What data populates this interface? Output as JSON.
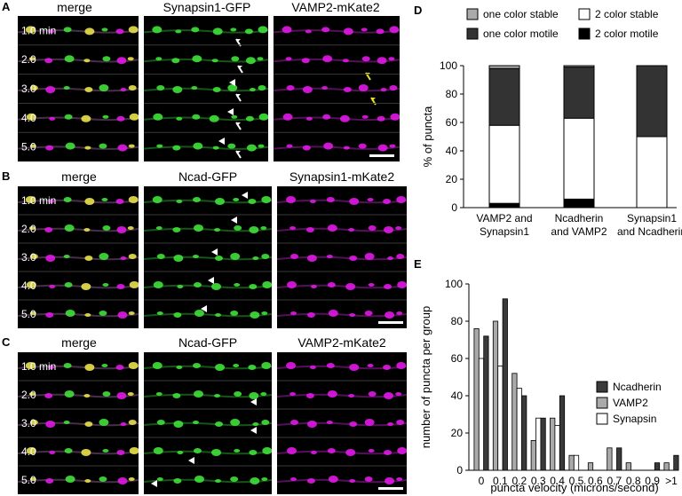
{
  "panels": {
    "A": {
      "letter": "A",
      "titles": [
        "merge",
        "Synapsin1-GFP",
        "VAMP2-mKate2"
      ],
      "times": [
        "1.0 min",
        "2.0",
        "3.0",
        "4.0",
        "5.0"
      ]
    },
    "B": {
      "letter": "B",
      "titles": [
        "merge",
        "Ncad-GFP",
        "Synapsin1-mKate2"
      ],
      "times": [
        "1.0 min",
        "2.0",
        "3.0",
        "4.0",
        "5.0"
      ]
    },
    "C": {
      "letter": "C",
      "titles": [
        "merge",
        "Ncad-GFP",
        "VAMP2-mKate2"
      ],
      "times": [
        "1.0 min",
        "2.0",
        "3.0",
        "4.0",
        "5.0"
      ]
    }
  },
  "colors": {
    "green": "#3fe03a",
    "magenta": "#e018e6",
    "yellow": "#e8e24a",
    "white_arrow": "#ffffff",
    "yellow_arrow": "#e8e02a"
  },
  "chart_data": [
    {
      "panel": "D",
      "type": "bar",
      "stacked": true,
      "categories": [
        [
          "VAMP2 and",
          "Synapsin1"
        ],
        [
          "Ncadherin",
          "and VAMP2"
        ],
        [
          "Synapsin1",
          "and Ncadherin"
        ]
      ],
      "series": [
        {
          "name": "2 color motile",
          "color": "#000000",
          "values": [
            3,
            6,
            0
          ]
        },
        {
          "name": "2 color stable",
          "color": "#ffffff",
          "values": [
            55,
            57,
            50
          ]
        },
        {
          "name": "one color motile",
          "color": "#333333",
          "values": [
            40,
            36,
            50
          ]
        },
        {
          "name": "one color stable",
          "color": "#aaaaaa",
          "values": [
            2,
            1,
            0
          ]
        }
      ],
      "ylabel": "% of puncta",
      "ylim": [
        0,
        100
      ],
      "yticks": [
        0,
        20,
        40,
        60,
        80,
        100
      ],
      "legend": [
        "one color stable",
        "2 color stable",
        "one color motile",
        "2 color motile"
      ],
      "legend_placement": "top"
    },
    {
      "panel": "E",
      "type": "bar",
      "categories": [
        "0",
        "0.1",
        "0.2",
        "0.3",
        "0.4",
        "0.5",
        "0.6",
        "0.7",
        "0.8",
        "0.9",
        ">1"
      ],
      "series": [
        {
          "name": "Ncadherin",
          "color": "#3a3a3a",
          "values": [
            72,
            92,
            40,
            28,
            40,
            0,
            0,
            12,
            0,
            4,
            8
          ]
        },
        {
          "name": "VAMP2",
          "color": "#aaaaaa",
          "values": [
            76,
            80,
            52,
            16,
            28,
            8,
            4,
            12,
            4,
            0,
            4
          ]
        },
        {
          "name": "Synapsin",
          "color": "#ffffff",
          "values": [
            60,
            56,
            44,
            28,
            24,
            8,
            0,
            0,
            0,
            0,
            0
          ]
        }
      ],
      "xlabel": "puncta velocity (microns/second)",
      "ylabel": "number of puncta per group",
      "ylim": [
        0,
        100
      ],
      "yticks": [
        0,
        20,
        40,
        60,
        80,
        100
      ],
      "legend_placement": "right"
    }
  ]
}
